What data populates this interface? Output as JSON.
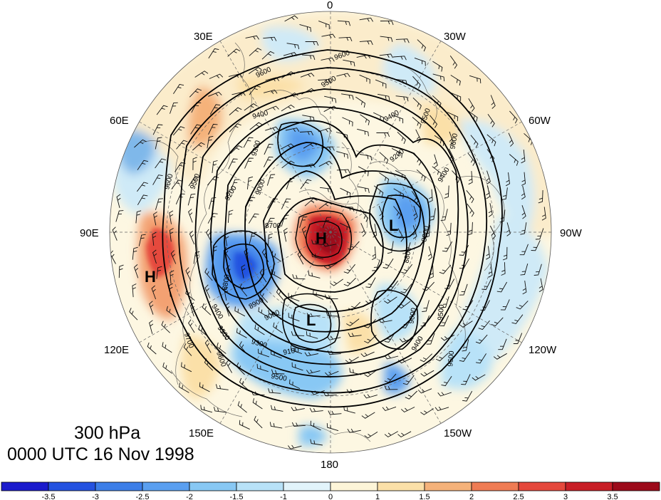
{
  "title": {
    "level": "300 hPa",
    "time": "0000 UTC 16 Nov 1998"
  },
  "longitude_labels": {
    "lon_0": "0",
    "lon_30w": "30W",
    "lon_60w": "60W",
    "lon_90w": "90W",
    "lon_120w": "120W",
    "lon_150w": "150W",
    "lon_180": "180",
    "lon_150e": "150E",
    "lon_120e": "120E",
    "lon_90e": "90E",
    "lon_60e": "60E",
    "lon_30e": "30E"
  },
  "contour_labels": [
    "9600",
    "9500",
    "9400",
    "9300",
    "9200",
    "9100",
    "9000",
    "8900",
    "8800",
    "8700",
    "9700"
  ],
  "pressure_centers": [
    {
      "symbol": "H",
      "name": "high-center-pole"
    },
    {
      "symbol": "H",
      "name": "high-center-asia"
    },
    {
      "symbol": "L",
      "name": "low-center-canada"
    },
    {
      "symbol": "L",
      "name": "low-center-pacific"
    }
  ],
  "colorbar": {
    "labels": [
      "-3.5",
      "-3",
      "-2.5",
      "-2",
      "-1.5",
      "-1",
      "0",
      "1",
      "1.5",
      "2",
      "2.5",
      "3",
      "3.5"
    ],
    "colors": [
      "#1a1acc",
      "#2452e0",
      "#3c7ee8",
      "#5a9ff0",
      "#88c8f4",
      "#b8e2f8",
      "#e2f4fb",
      "#fdf5d8",
      "#fbe0a8",
      "#f5b27a",
      "#ef7c54",
      "#e5483c",
      "#c81e26",
      "#9c0a1a"
    ]
  }
}
